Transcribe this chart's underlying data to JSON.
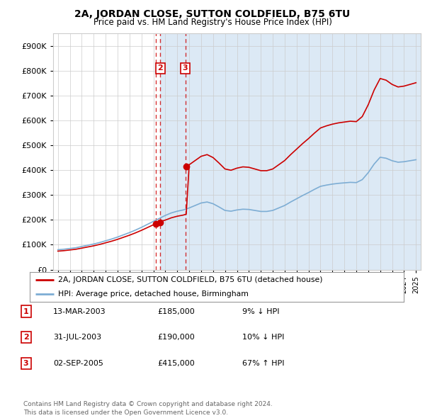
{
  "title": "2A, JORDAN CLOSE, SUTTON COLDFIELD, B75 6TU",
  "subtitle": "Price paid vs. HM Land Registry's House Price Index (HPI)",
  "transaction_labels": [
    {
      "num": 1,
      "date": "13-MAR-2003",
      "price": "£185,000",
      "hpi_diff": "9% ↓ HPI"
    },
    {
      "num": 2,
      "date": "31-JUL-2003",
      "price": "£190,000",
      "hpi_diff": "10% ↓ HPI"
    },
    {
      "num": 3,
      "date": "02-SEP-2005",
      "price": "£415,000",
      "hpi_diff": "67% ↑ HPI"
    }
  ],
  "vline_dates": [
    2003.21,
    2003.58,
    2005.67
  ],
  "marker_numbers": [
    "2",
    "3"
  ],
  "marker_vline_idx": [
    1,
    2
  ],
  "legend_line1": "2A, JORDAN CLOSE, SUTTON COLDFIELD, B75 6TU (detached house)",
  "legend_line2": "HPI: Average price, detached house, Birmingham",
  "footer": "Contains HM Land Registry data © Crown copyright and database right 2024.\nThis data is licensed under the Open Government Licence v3.0.",
  "sold_color": "#cc0000",
  "hpi_color": "#7dadd4",
  "marker_box_color": "#cc0000",
  "vline_color": "#cc0000",
  "shade_color": "#dce9f5",
  "ylim": [
    0,
    950000
  ],
  "yticks": [
    0,
    100000,
    200000,
    300000,
    400000,
    500000,
    600000,
    700000,
    800000,
    900000
  ],
  "background_color": "#ffffff",
  "grid_color": "#cccccc"
}
